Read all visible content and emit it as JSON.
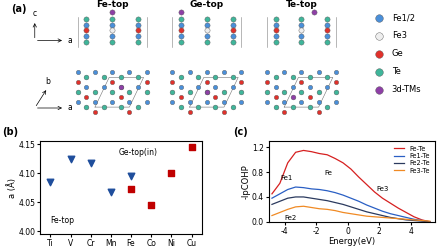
{
  "panel_a": {
    "label": "(a)",
    "structures": [
      "Fe-top",
      "Ge-top",
      "Te-top"
    ],
    "axis_labels": [
      "c",
      "a",
      "b",
      "a"
    ],
    "legend": [
      {
        "name": "Fe1/2",
        "color": "#4a8fd9"
      },
      {
        "name": "Fe3",
        "color": "#eeeeee"
      },
      {
        "name": "Ge",
        "color": "#e0312b"
      },
      {
        "name": "Te",
        "color": "#3fb59a"
      },
      {
        "name": "3d-TMs",
        "color": "#8e3fa6"
      }
    ]
  },
  "chart_data": [
    {
      "label": "(b)",
      "type": "scatter",
      "categories": [
        "Ti",
        "V",
        "Cr",
        "Mn",
        "Fe",
        "Co",
        "Ni",
        "Cu"
      ],
      "ylabel": "a (Å)",
      "ylim": [
        3.995,
        4.155
      ],
      "yticks": [
        {
          "value": 4.0,
          "label": "4.00"
        },
        4.05,
        {
          "value": 4.1,
          "label": "4.10"
        },
        4.15
      ],
      "series": [
        {
          "name": "Fe-top",
          "color": "#1f4e9c",
          "marker": "v",
          "values": [
            4.085,
            4.125,
            4.118,
            4.067,
            4.095,
            null,
            null,
            null
          ]
        },
        {
          "name": "Ge-top(in)",
          "color": "#c00000",
          "marker": "s",
          "values": [
            null,
            null,
            null,
            null,
            4.072,
            4.045,
            4.1,
            4.145
          ]
        }
      ]
    },
    {
      "label": "(c)",
      "type": "line",
      "xlabel": "Energy(eV)",
      "ylabel": "-lpCOHP",
      "x": [
        -4.8,
        -4.3,
        -3.8,
        -3.3,
        -2.8,
        -2.3,
        -1.8,
        -1.3,
        -0.8,
        -0.3,
        0.2,
        0.7,
        1.2,
        1.7,
        2.2,
        2.7,
        3.2,
        3.7,
        4.2,
        4.7,
        5.2
      ],
      "xlim": [
        -5,
        5.5
      ],
      "xticks": [
        -4,
        -2,
        0,
        2,
        4
      ],
      "ylim": [
        0,
        1.3
      ],
      "yticks": [
        0.0,
        0.4,
        0.8,
        1.2
      ],
      "legend": "upper right",
      "series": [
        {
          "name": "Fe-Te",
          "color": "#d62020",
          "values": [
            0.45,
            0.62,
            0.95,
            1.12,
            1.15,
            1.13,
            1.1,
            1.08,
            1.02,
            0.95,
            0.85,
            0.72,
            0.6,
            0.48,
            0.38,
            0.3,
            0.22,
            0.15,
            0.08,
            0.03,
            0.0
          ]
        },
        {
          "name": "Fe1-Te",
          "color": "#2a5fc4",
          "values": [
            0.38,
            0.45,
            0.52,
            0.56,
            0.55,
            0.53,
            0.52,
            0.5,
            0.47,
            0.43,
            0.38,
            0.33,
            0.27,
            0.22,
            0.17,
            0.13,
            0.1,
            0.07,
            0.04,
            0.02,
            0.0
          ]
        },
        {
          "name": "Fe2-Te",
          "color": "#2b3a5e",
          "values": [
            0.28,
            0.33,
            0.38,
            0.4,
            0.4,
            0.38,
            0.36,
            0.34,
            0.31,
            0.28,
            0.24,
            0.2,
            0.16,
            0.13,
            0.1,
            0.07,
            0.05,
            0.03,
            0.02,
            0.01,
            0.0
          ]
        },
        {
          "name": "Fe3-Te",
          "color": "#f08a24",
          "values": [
            0.1,
            0.15,
            0.2,
            0.24,
            0.25,
            0.23,
            0.21,
            0.2,
            0.18,
            0.15,
            0.13,
            0.11,
            0.09,
            0.08,
            0.07,
            0.06,
            0.05,
            0.04,
            0.03,
            0.02,
            0.01
          ]
        }
      ],
      "annotations": [
        "Fe",
        "Fe1",
        "Fe2",
        "Fe3"
      ]
    }
  ]
}
